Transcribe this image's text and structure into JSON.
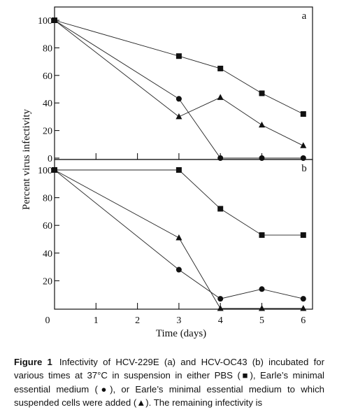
{
  "figure": {
    "y_axis_label": "Percent virus infectivity",
    "x_axis_label": "Time (days)",
    "caption_label": "Figure 1",
    "caption_text": "Infectivity of HCV-229E (a) and HCV-OC43 (b) incubated for various times at 37°C in suspension in either PBS (■), Earle’s minimal essential medium (●), or Earle’s minimal essential medium to which suspended cells were added (▲). The remaining infectivity is"
  },
  "chart_data": [
    {
      "type": "line",
      "panel_label": "a",
      "x_ticks": [
        1,
        2,
        3,
        4,
        5,
        6
      ],
      "y_ticks": [
        0,
        20,
        40,
        60,
        80,
        100
      ],
      "xlim": [
        0,
        6.1
      ],
      "ylim": [
        0,
        105
      ],
      "series": [
        {
          "marker": "square",
          "x": [
            0,
            3,
            4,
            5,
            6
          ],
          "y": [
            100,
            74,
            65,
            47,
            32
          ]
        },
        {
          "marker": "circle",
          "x": [
            0,
            3,
            4,
            5,
            6
          ],
          "y": [
            100,
            43,
            0,
            0,
            0
          ]
        },
        {
          "marker": "triangle",
          "x": [
            0,
            3,
            4,
            5,
            6
          ],
          "y": [
            100,
            30,
            44,
            24,
            9
          ]
        }
      ]
    },
    {
      "type": "line",
      "panel_label": "b",
      "x_ticks": [
        0,
        1,
        2,
        3,
        4,
        5,
        6
      ],
      "y_ticks": [
        20,
        40,
        60,
        80,
        100
      ],
      "xlim": [
        0,
        6.1
      ],
      "ylim": [
        0,
        105
      ],
      "series": [
        {
          "marker": "square",
          "x": [
            0,
            3,
            4,
            5,
            6
          ],
          "y": [
            100,
            100,
            72,
            53,
            53
          ]
        },
        {
          "marker": "circle",
          "x": [
            0,
            3,
            4,
            5,
            6
          ],
          "y": [
            100,
            28,
            7,
            14,
            7
          ]
        },
        {
          "marker": "triangle",
          "x": [
            0,
            3,
            4,
            5,
            6
          ],
          "y": [
            100,
            51,
            0,
            0,
            0
          ]
        }
      ]
    }
  ]
}
